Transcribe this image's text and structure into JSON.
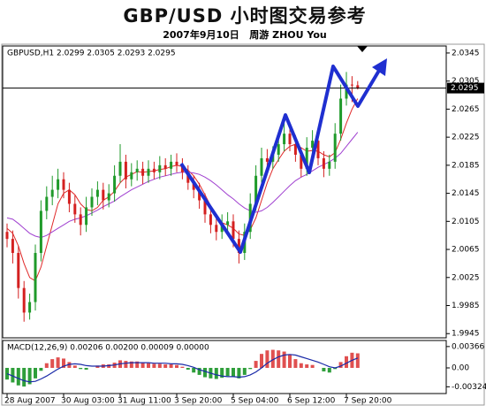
{
  "header": {
    "title": "GBP/USD 小时图交易参考",
    "subtitle": "2007年9月10日   周游 ZHOU You"
  },
  "chart_data": [
    {
      "type": "candlestick",
      "title": "GBPUSD,H1 2.0299 2.0305 2.0293 2.0295",
      "categories": [
        "28 Aug 2007",
        null,
        null,
        null,
        null,
        null,
        null,
        null,
        null,
        null,
        "30 Aug 03:00",
        null,
        null,
        null,
        null,
        null,
        null,
        null,
        null,
        null,
        "31 Aug 11:00",
        null,
        null,
        null,
        null,
        null,
        null,
        null,
        null,
        null,
        "3 Sep 20:00",
        null,
        null,
        null,
        null,
        null,
        null,
        null,
        null,
        null,
        "5 Sep 04:00",
        null,
        null,
        null,
        null,
        null,
        null,
        null,
        null,
        null,
        "6 Sep 12:00",
        null,
        null,
        null,
        null,
        null,
        null,
        null,
        null,
        null,
        "7 Sep 20:00",
        null,
        null
      ],
      "open": [
        2.009,
        2.008,
        2.006,
        2.001,
        1.9975,
        1.999,
        2.006,
        2.012,
        2.014,
        2.015,
        2.0165,
        2.015,
        2.013,
        2.0115,
        2.01,
        2.0125,
        2.014,
        2.015,
        2.0135,
        2.0145,
        2.017,
        2.019,
        2.0165,
        2.0175,
        2.018,
        2.017,
        2.018,
        2.0175,
        2.0185,
        2.018,
        2.019,
        2.0185,
        2.0175,
        2.016,
        2.015,
        2.0135,
        2.0115,
        2.01,
        2.009,
        2.01,
        2.0105,
        2.008,
        2.006,
        2.009,
        2.013,
        2.017,
        2.0195,
        2.019,
        2.02,
        2.0215,
        2.023,
        2.0215,
        2.02,
        2.018,
        2.021,
        2.022,
        2.0195,
        2.018,
        2.019,
        2.023,
        2.028,
        2.03,
        2.0299
      ],
      "high": [
        2.0102,
        2.0092,
        2.007,
        2.002,
        2.0002,
        2.0072,
        2.0135,
        2.0155,
        2.017,
        2.018,
        2.0175,
        2.016,
        2.0142,
        2.0125,
        2.014,
        2.0152,
        2.0162,
        2.016,
        2.0158,
        2.0185,
        2.0215,
        2.02,
        2.0188,
        2.0192,
        2.019,
        2.0192,
        2.019,
        2.0198,
        2.0195,
        2.02,
        2.0202,
        2.0195,
        2.0185,
        2.017,
        2.016,
        2.0145,
        2.0125,
        2.0112,
        2.0115,
        2.0118,
        2.0115,
        2.0092,
        2.0102,
        2.0145,
        2.0185,
        2.021,
        2.0208,
        2.0212,
        2.0228,
        2.0245,
        2.024,
        2.0228,
        2.021,
        2.0225,
        2.0235,
        2.023,
        2.0205,
        2.02,
        2.0245,
        2.03,
        2.0318,
        2.0312,
        2.0305
      ],
      "low": [
        2.0068,
        2.0045,
        1.9995,
        1.9962,
        1.9965,
        1.9978,
        2.0048,
        2.0108,
        2.0128,
        2.0138,
        2.0138,
        2.0118,
        2.0103,
        2.0085,
        2.009,
        2.0113,
        2.0128,
        2.0122,
        2.0125,
        2.0133,
        2.016,
        2.0152,
        2.0155,
        2.0163,
        2.0158,
        2.016,
        2.0165,
        2.0165,
        2.017,
        2.017,
        2.0175,
        2.0165,
        2.015,
        2.0138,
        2.0123,
        2.0103,
        2.0088,
        2.0078,
        2.008,
        2.009,
        2.0068,
        2.0045,
        2.005,
        2.008,
        2.012,
        2.016,
        2.0178,
        2.018,
        2.019,
        2.0205,
        2.0205,
        2.019,
        2.0168,
        2.017,
        2.02,
        2.0185,
        2.0168,
        2.017,
        2.018,
        2.022,
        2.027,
        2.0275,
        2.0293
      ],
      "close": [
        2.008,
        2.006,
        2.001,
        1.9975,
        1.999,
        2.006,
        2.012,
        2.014,
        2.015,
        2.0165,
        2.015,
        2.013,
        2.0115,
        2.01,
        2.0125,
        2.014,
        2.015,
        2.0135,
        2.0145,
        2.017,
        2.019,
        2.0165,
        2.0175,
        2.018,
        2.017,
        2.018,
        2.0175,
        2.0185,
        2.018,
        2.019,
        2.0185,
        2.0175,
        2.016,
        2.015,
        2.0135,
        2.0115,
        2.01,
        2.009,
        2.01,
        2.0105,
        2.008,
        2.006,
        2.009,
        2.013,
        2.017,
        2.0195,
        2.019,
        2.02,
        2.0215,
        2.023,
        2.0215,
        2.02,
        2.018,
        2.021,
        2.022,
        2.0195,
        2.018,
        2.019,
        2.023,
        2.028,
        2.03,
        2.0299,
        2.0295
      ],
      "up_color": "#1f9a2a",
      "down_color": "#d42020",
      "series": [
        {
          "color": "#e02828",
          "values": [
            2.0095,
            2.0088,
            2.007,
            2.0045,
            2.0025,
            2.002,
            2.004,
            2.007,
            2.01,
            2.013,
            2.0145,
            2.015,
            2.0143,
            2.013,
            2.0122,
            2.012,
            2.0125,
            2.0135,
            2.014,
            2.0148,
            2.016,
            2.0168,
            2.0172,
            2.0176,
            2.0175,
            2.0176,
            2.0177,
            2.0179,
            2.018,
            2.0183,
            2.0185,
            2.0183,
            2.0178,
            2.017,
            2.0158,
            2.0143,
            2.0127,
            2.0112,
            2.0103,
            2.01,
            2.0095,
            2.0087,
            2.0085,
            2.0093,
            2.011,
            2.0135,
            2.016,
            2.018,
            2.0193,
            2.0205,
            2.0212,
            2.0215,
            2.021,
            2.0205,
            2.0206,
            2.0205,
            2.02,
            2.0197,
            2.0203,
            2.0222,
            2.0245,
            2.0265,
            2.028
          ]
        },
        {
          "color": "#a040d0",
          "values": [
            2.011,
            2.0108,
            2.0102,
            2.0095,
            2.0088,
            2.0084,
            2.0082,
            2.0085,
            2.009,
            2.0095,
            2.01,
            2.0105,
            2.0108,
            2.011,
            2.0113,
            2.0117,
            2.0121,
            2.0126,
            2.013,
            2.0134,
            2.014,
            2.0145,
            2.015,
            2.0154,
            2.0158,
            2.0162,
            2.0165,
            2.0168,
            2.017,
            2.0172,
            2.0174,
            2.0175,
            2.0175,
            2.0174,
            2.0172,
            2.0168,
            2.0163,
            2.0157,
            2.015,
            2.0143,
            2.0137,
            2.013,
            2.0124,
            2.012,
            2.0118,
            2.012,
            2.0125,
            2.0132,
            2.014,
            2.0148,
            2.0156,
            2.0163,
            2.0168,
            2.0172,
            2.0177,
            2.0182,
            2.0186,
            2.019,
            2.0195,
            2.0202,
            2.0212,
            2.0222,
            2.0232
          ]
        }
      ],
      "ylim": [
        1.9939,
        2.0355
      ],
      "yticks": [
        2.0345,
        2.0305,
        2.0265,
        2.0225,
        2.0185,
        2.0145,
        2.0105,
        2.0065,
        2.0025,
        1.9985,
        1.9945
      ],
      "last_price": 2.0295
    },
    {
      "type": "macd",
      "title": "MACD(12,26,9) 0.00206 0.00200 0.00009 0.00000",
      "values": [
        -0.002,
        -0.0025,
        -0.003,
        -0.0032,
        -0.0028,
        -0.0018,
        -0.0005,
        0.0008,
        0.0015,
        0.0018,
        0.0016,
        0.001,
        0.0004,
        -0.0002,
        -0.0003,
        0,
        0.0004,
        0.0006,
        0.0006,
        0.0009,
        0.0013,
        0.0012,
        0.0011,
        0.0011,
        0.0009,
        0.0008,
        0.0007,
        0.0007,
        0.0006,
        0.0006,
        0.0005,
        0.0002,
        -0.0003,
        -0.0008,
        -0.0012,
        -0.0016,
        -0.0018,
        -0.0019,
        -0.0017,
        -0.0014,
        -0.0015,
        -0.0018,
        -0.0012,
        -0.0002,
        0.0012,
        0.0024,
        0.003,
        0.0031,
        0.003,
        0.0028,
        0.0022,
        0.0015,
        0.0008,
        0.0006,
        0.0005,
        0,
        -0.0006,
        -0.0008,
        -0.0002,
        0.001,
        0.002,
        0.0026,
        0.0025
      ],
      "up_color": "#e05050",
      "down_color": "#2e9e3a",
      "series": [
        {
          "color": "#1a2aa8",
          "values": [
            -0.001,
            -0.0014,
            -0.0018,
            -0.0022,
            -0.0024,
            -0.0023,
            -0.0019,
            -0.0014,
            -0.0008,
            -0.0002,
            0.0003,
            0.0006,
            0.0007,
            0.0006,
            0.0004,
            0.0003,
            0.0003,
            0.0003,
            0.0004,
            0.0005,
            0.0007,
            0.0008,
            0.0009,
            0.0009,
            0.0009,
            0.0009,
            0.0008,
            0.0008,
            0.0008,
            0.0007,
            0.0007,
            0.0006,
            0.0004,
            0.0001,
            -0.0003,
            -0.0006,
            -0.0009,
            -0.0012,
            -0.0014,
            -0.0015,
            -0.0015,
            -0.0016,
            -0.0015,
            -0.0012,
            -0.0007,
            0,
            0.0008,
            0.0014,
            0.0019,
            0.0022,
            0.0023,
            0.0022,
            0.0019,
            0.0016,
            0.0013,
            0.001,
            0.0006,
            0.0002,
            0,
            0.0003,
            0.0008,
            0.0013,
            0.0017
          ]
        }
      ],
      "ylim": [
        -0.0044,
        0.0047
      ],
      "yticks": [
        0.00366,
        {
          "value": 0,
          "label": "0.00"
        },
        -0.00324
      ]
    }
  ]
}
